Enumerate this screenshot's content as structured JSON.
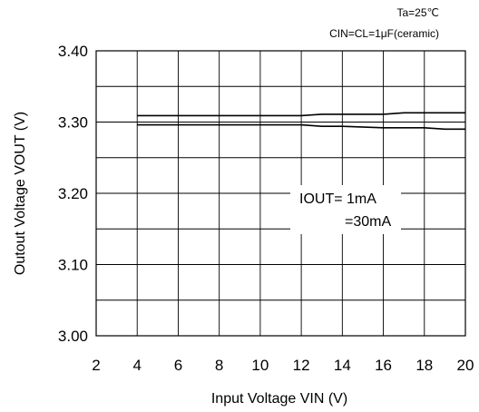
{
  "chart_data": {
    "type": "line",
    "title": "",
    "conditions": [
      "Ta=25℃",
      "CIN=CL=1μF(ceramic)"
    ],
    "xlabel": "Input Voltage  VIN  (V)",
    "ylabel": "Outout Voltage  VOUT  (V)",
    "xlim": [
      4,
      20
    ],
    "ylim": [
      3.0,
      3.4
    ],
    "x_ticks": [
      "2",
      "4",
      "6",
      "8",
      "10",
      "12",
      "14",
      "16",
      "18",
      "20"
    ],
    "y_ticks": [
      "3.40",
      "3.30",
      "3.20",
      "3.10",
      "3.00"
    ],
    "grid": true,
    "legend_text": [
      "IOUT=  1mA",
      "=30mA"
    ],
    "series": [
      {
        "name": "IOUT=1mA",
        "x": [
          4,
          6,
          8,
          10,
          12,
          13,
          14,
          16,
          17,
          18,
          20
        ],
        "y": [
          3.309,
          3.309,
          3.309,
          3.309,
          3.309,
          3.311,
          3.311,
          3.311,
          3.313,
          3.313,
          3.313
        ]
      },
      {
        "name": "IOUT=30mA",
        "x": [
          4,
          6,
          8,
          10,
          12,
          13,
          14,
          16,
          17,
          18,
          19,
          20
        ],
        "y": [
          3.296,
          3.296,
          3.296,
          3.296,
          3.296,
          3.294,
          3.294,
          3.292,
          3.292,
          3.292,
          3.29,
          3.29
        ]
      }
    ],
    "colors": {
      "line": "#000000",
      "grid": "#000000"
    }
  }
}
